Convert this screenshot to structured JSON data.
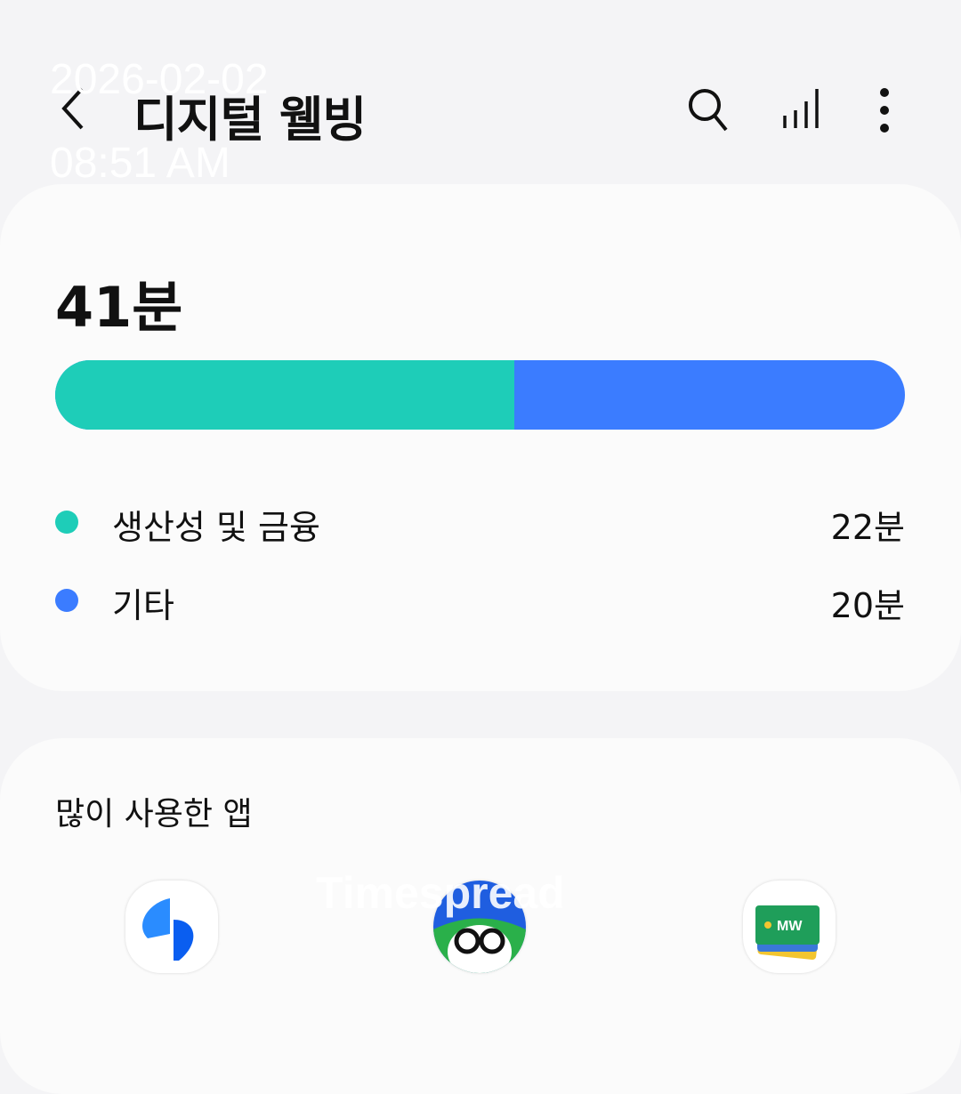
{
  "overlay": {
    "date": "2026-02-02",
    "time": "08:51 AM",
    "watermark": "Timespread"
  },
  "header": {
    "title": "디지털 웰빙",
    "icons": [
      "back-icon",
      "search-icon",
      "chart-icon",
      "more-icon"
    ]
  },
  "summary": {
    "total": "41분",
    "progress_fraction_first": 0.54,
    "categories": [
      {
        "label": "생산성 및 금융",
        "value": "22분",
        "color": "#1ecdb8"
      },
      {
        "label": "기타",
        "value": "20분",
        "color": "#3b7cff"
      }
    ]
  },
  "most_used": {
    "title": "많이 사용한 앱",
    "apps": [
      "blue-app-icon",
      "character-app-icon",
      "wallet-app-icon"
    ]
  }
}
